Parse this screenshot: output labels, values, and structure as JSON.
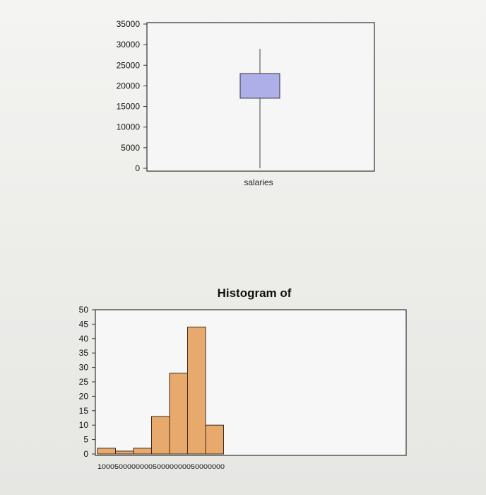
{
  "chart_data": [
    {
      "type": "box",
      "title": "",
      "categories": [
        "salaries"
      ],
      "box": {
        "whisker_low": 0,
        "q1": 17000,
        "q3": 23000,
        "whisker_high": 29000
      },
      "yticks": [
        "0",
        "5000",
        "10000",
        "15000",
        "20000",
        "25000",
        "30000",
        "35000"
      ],
      "ylim": [
        0,
        35000
      ],
      "box_color": "#aeaee8",
      "grid": false
    },
    {
      "type": "bar",
      "title": "Histogram of",
      "values": [
        2,
        1,
        2,
        13,
        28,
        44,
        10
      ],
      "yticks": [
        "0",
        "5",
        "10",
        "15",
        "20",
        "25",
        "30",
        "35",
        "40",
        "45",
        "50"
      ],
      "ylim": [
        0,
        50
      ],
      "xtick_text": "100050000000050000000050000000",
      "bar_color": "#e8a96c",
      "grid": false
    }
  ]
}
